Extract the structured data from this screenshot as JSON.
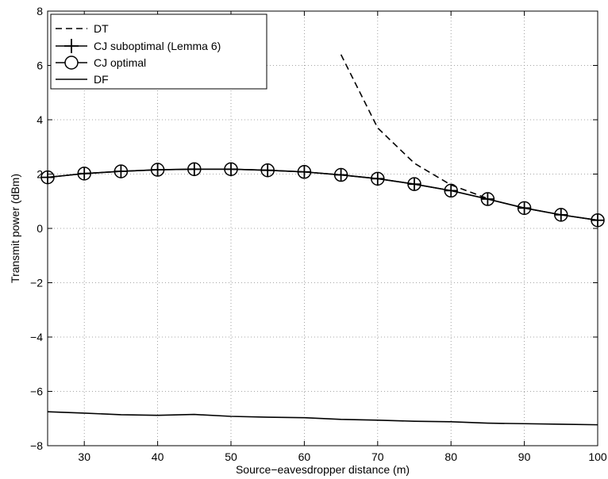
{
  "chart_data": {
    "type": "line",
    "title": "",
    "xlabel": "Source−eavesdropper distance (m)",
    "ylabel": "Transmit power (dBm)",
    "xlim": [
      25,
      100
    ],
    "ylim": [
      -8,
      8
    ],
    "xticks": [
      30,
      40,
      50,
      60,
      70,
      80,
      90,
      100
    ],
    "yticks": [
      -8,
      -6,
      -4,
      -2,
      0,
      2,
      4,
      6,
      8
    ],
    "xtick_labels": [
      "30",
      "40",
      "50",
      "60",
      "70",
      "80",
      "90",
      "100"
    ],
    "ytick_labels": [
      "−8",
      "−6",
      "−4",
      "−2",
      "0",
      "2",
      "4",
      "6",
      "8"
    ],
    "grid": true,
    "legend_position": "top-left",
    "series": [
      {
        "name": "DT",
        "style": "dashed",
        "x": [
          65,
          70,
          75,
          80,
          85
        ],
        "y": [
          6.4,
          3.7,
          2.4,
          1.6,
          1.1
        ]
      },
      {
        "name": "CJ suboptimal (Lemma 6)",
        "style": "solid-plus",
        "x": [
          25,
          30,
          35,
          40,
          45,
          50,
          55,
          60,
          65,
          70,
          75,
          80,
          85,
          90,
          95,
          100
        ],
        "y": [
          1.88,
          2.02,
          2.1,
          2.16,
          2.18,
          2.18,
          2.14,
          2.08,
          1.97,
          1.83,
          1.63,
          1.39,
          1.08,
          0.75,
          0.5,
          0.3
        ]
      },
      {
        "name": "CJ optimal",
        "style": "solid-circle",
        "x": [
          25,
          30,
          35,
          40,
          45,
          50,
          55,
          60,
          65,
          70,
          75,
          80,
          85,
          90,
          95,
          100
        ],
        "y": [
          1.88,
          2.02,
          2.1,
          2.16,
          2.18,
          2.18,
          2.14,
          2.08,
          1.97,
          1.83,
          1.63,
          1.39,
          1.08,
          0.75,
          0.5,
          0.3
        ]
      },
      {
        "name": "DF",
        "style": "solid",
        "x": [
          25,
          30,
          35,
          40,
          45,
          50,
          55,
          60,
          65,
          70,
          75,
          80,
          85,
          90,
          95,
          100
        ],
        "y": [
          -6.75,
          -6.8,
          -6.86,
          -6.88,
          -6.85,
          -6.92,
          -6.95,
          -6.97,
          -7.03,
          -7.06,
          -7.1,
          -7.12,
          -7.17,
          -7.19,
          -7.21,
          -7.23
        ]
      }
    ]
  }
}
